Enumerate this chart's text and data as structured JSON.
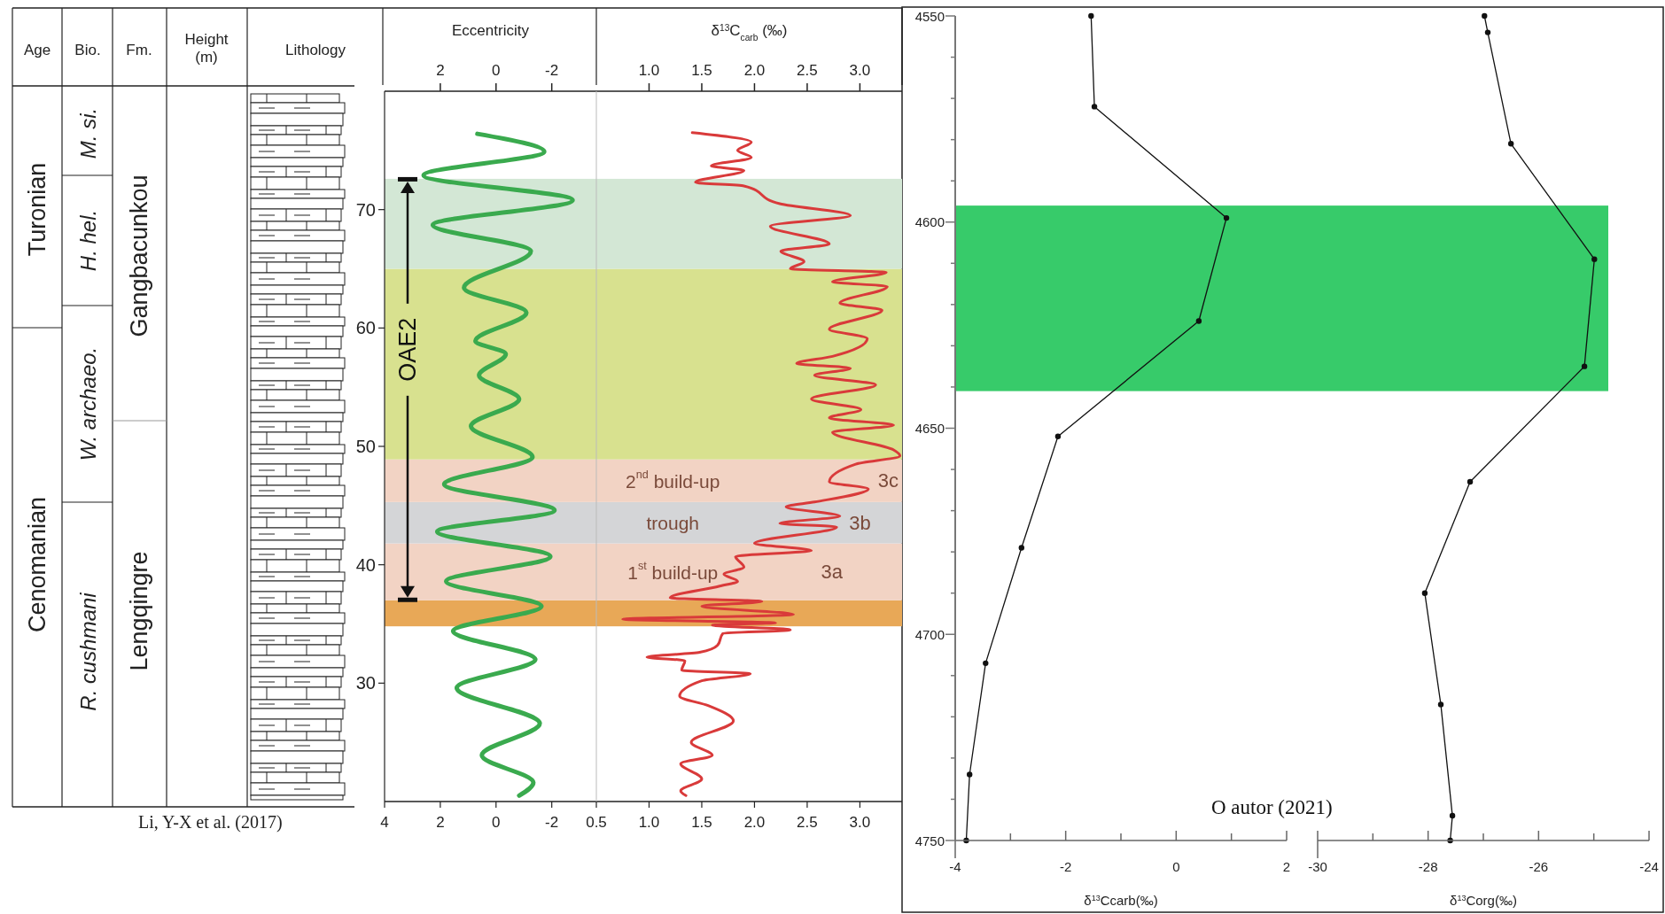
{
  "chart_data": [
    {
      "type": "other",
      "categories": [
        "Age",
        "Bio.",
        "Fm."
      ],
      "annotations": [
        "Turonian",
        "Cenomanian",
        "M. si.",
        "H. hel.",
        "W. archaeo.",
        "R. cushmani",
        "Gangbacunkou",
        "Lengqingre"
      ]
    },
    {
      "type": "line",
      "xlabel": "Eccentricity",
      "ylabel": "Height (m)",
      "xlim": [
        4,
        -3.6
      ],
      "xticks": [
        4,
        2,
        0,
        -2
      ],
      "x2lim": [
        4,
        -3.6
      ],
      "x2ticks": [
        2,
        0,
        -2
      ],
      "ylim": [
        20,
        80
      ],
      "yticks": [
        30,
        40,
        50,
        60,
        70
      ],
      "series": [
        {
          "color": "#3aaa4e",
          "x": [
            0.67,
            -1.73,
            2.6,
            -2.75,
            2.27,
            -1.25,
            1.15,
            -1.09,
            0.74,
            -0.35,
            0.61,
            -0.83,
            0.9,
            -1.31,
            1.86,
            -2.1,
            2.11,
            -1.95,
            1.79,
            -1.63,
            1.54,
            -1.41,
            1.41,
            -1.57,
            0.51,
            -1.34,
            -0.83
          ],
          "values": [
            76.4,
            74.9,
            72.9,
            70.8,
            68.7,
            66.5,
            63.4,
            61.3,
            58.9,
            57.8,
            56.0,
            54.0,
            51.7,
            49.1,
            46.8,
            44.6,
            42.8,
            40.7,
            38.6,
            36.5,
            34.4,
            32.0,
            29.6,
            26.6,
            23.9,
            21.6,
            20.5
          ]
        }
      ],
      "bands": [
        {
          "axis": "y",
          "from": 34.8,
          "to": 37.0,
          "color": "#e8a857"
        },
        {
          "axis": "y",
          "from": 37.0,
          "to": 41.8,
          "color": "#f2d3c4"
        },
        {
          "axis": "y",
          "from": 41.8,
          "to": 45.3,
          "color": "#d4d5d7"
        },
        {
          "axis": "y",
          "from": 45.3,
          "to": 48.9,
          "color": "#f2d3c4"
        },
        {
          "axis": "y",
          "from": 48.9,
          "to": 65.0,
          "color": "#d8e18f"
        },
        {
          "axis": "y",
          "from": 65.0,
          "to": 72.6,
          "color": "#d3e7d5"
        }
      ],
      "annotations": [
        "OAE2",
        "Lithology",
        "Li, Y-X et al. (2017)"
      ]
    },
    {
      "type": "line",
      "xlabel": "δ$^{13}$C$_{carb}$ (‰)",
      "xlim": [
        0.5,
        3.4
      ],
      "xticks": [
        {
          "value": 0.5,
          "label": "0.5"
        },
        {
          "value": 1,
          "label": "1.0"
        },
        {
          "value": 1.5,
          "label": "1.5"
        },
        {
          "value": 2,
          "label": "2.0"
        },
        {
          "value": 2.5,
          "label": "2.5"
        },
        {
          "value": 3,
          "label": "3.0"
        }
      ],
      "x2lim": [
        0.5,
        3.4
      ],
      "x2ticks": [
        {
          "value": 1,
          "label": "1.0"
        },
        {
          "value": 1.5,
          "label": "1.5"
        },
        {
          "value": 2,
          "label": "2.0"
        },
        {
          "value": 2.5,
          "label": "2.5"
        },
        {
          "value": 3,
          "label": "3.0"
        }
      ],
      "ylim": [
        20,
        80
      ],
      "tick_labels": "x",
      "series": [
        {
          "color": "#d93a3a",
          "x": [
            1.41,
            1.97,
            1.84,
            1.97,
            1.59,
            1.9,
            1.44,
            1.9,
            2.24,
            2.91,
            2.15,
            2.71,
            2.25,
            2.47,
            2.34,
            3.25,
            2.74,
            3.26,
            2.81,
            3.21,
            2.71,
            3.07,
            2.74,
            2.4,
            2.91,
            2.57,
            3.15,
            2.54,
            3.01,
            2.71,
            3.32,
            2.74,
            3.32,
            3.38,
            2.96,
            2.71,
            3.08,
            2.57,
            2.3,
            2.81,
            2.24,
            2.78,
            2.0,
            2.54,
            1.82,
            1.9,
            1.71,
            1.84,
            1.67,
            1.2,
            2.07,
            1.5,
            2.37,
            0.75,
            2.2,
            1.6,
            2.34,
            1.7,
            1.65,
            1.48,
            0.98,
            1.34,
            1.31,
            1.96,
            1.5,
            1.29,
            1.56,
            1.8,
            1.4,
            1.6,
            1.3,
            1.5,
            1.3,
            1.35
          ],
          "values": [
            76.5,
            75.7,
            75.0,
            74.4,
            73.7,
            73.3,
            72.3,
            72.0,
            70.5,
            69.5,
            68.6,
            67.1,
            66.5,
            65.6,
            65.0,
            64.7,
            63.9,
            63.5,
            62.1,
            61.5,
            59.9,
            59.1,
            57.6,
            57.0,
            56.6,
            56.0,
            55.2,
            54.0,
            53.1,
            52.4,
            51.8,
            51.2,
            49.7,
            49.2,
            48.5,
            47.0,
            46.4,
            45.3,
            44.9,
            44.1,
            43.5,
            43.2,
            41.8,
            41.2,
            40.7,
            39.8,
            39.2,
            38.6,
            38.2,
            37.2,
            36.9,
            36.5,
            35.8,
            35.4,
            35.1,
            34.9,
            34.5,
            34.2,
            33.2,
            32.6,
            32.2,
            31.9,
            31.1,
            30.8,
            30.2,
            28.9,
            28.1,
            26.8,
            25.0,
            23.9,
            23.2,
            21.9,
            20.9,
            20.5
          ]
        }
      ],
      "bands": [
        {
          "axis": "y",
          "from": 34.8,
          "to": 37.0,
          "color": "#e8a857"
        },
        {
          "axis": "y",
          "from": 37.0,
          "to": 41.8,
          "color": "#f2d3c4",
          "label": "1$^{st}$ build-up"
        },
        {
          "axis": "y",
          "from": 41.8,
          "to": 45.3,
          "color": "#d4d5d7",
          "label": "trough"
        },
        {
          "axis": "y",
          "from": 45.3,
          "to": 48.9,
          "color": "#f2d3c4",
          "label": "2$^{nd}$ build-up"
        },
        {
          "axis": "y",
          "from": 48.9,
          "to": 65.0,
          "color": "#d8e18f"
        },
        {
          "axis": "y",
          "from": 65.0,
          "to": 72.6,
          "color": "#d3e7d5"
        }
      ],
      "annotations": [
        "3a",
        "3b",
        "3c"
      ]
    },
    {
      "type": "line",
      "xlabel": "δ$^{13}$Ccarb(‰)",
      "xlim": [
        -4,
        2
      ],
      "xticks": [
        -4,
        {
          "value": -3,
          "label": null
        },
        -2,
        {
          "value": -1,
          "label": null
        },
        0,
        {
          "value": 1,
          "label": null
        },
        2
      ],
      "ylim": [
        4750,
        4550
      ],
      "yticks": [
        4550,
        {
          "value": 4560,
          "label": null
        },
        {
          "value": 4570,
          "label": null
        },
        {
          "value": 4580,
          "label": null
        },
        {
          "value": 4590,
          "label": null
        },
        4600,
        {
          "value": 4610,
          "label": null
        },
        {
          "value": 4620,
          "label": null
        },
        {
          "value": 4630,
          "label": null
        },
        {
          "value": 4640,
          "label": null
        },
        4650,
        {
          "value": 4660,
          "label": null
        },
        {
          "value": 4670,
          "label": null
        },
        {
          "value": 4680,
          "label": null
        },
        {
          "value": 4690,
          "label": null
        },
        4700,
        {
          "value": 4710,
          "label": null
        },
        {
          "value": 4720,
          "label": null
        },
        {
          "value": 4730,
          "label": null
        },
        {
          "value": 4740,
          "label": null
        },
        4750
      ],
      "marker": "circle",
      "series": [
        {
          "color": "#111111",
          "x": [
            -1.54,
            -1.48,
            0.91,
            0.41,
            -2.14,
            -2.8,
            -3.45,
            -3.74,
            -3.8
          ],
          "values": [
            4550,
            4572,
            4599,
            4624,
            4652,
            4679,
            4707,
            4734,
            4750
          ]
        }
      ],
      "bands": [
        {
          "axis": "y",
          "from": 4596,
          "to": 4641,
          "color": "#37cb6a"
        }
      ],
      "annotations": [
        "O autor (2021)"
      ]
    },
    {
      "type": "line",
      "xlabel": "δ$^{13}$Corg(‰)",
      "xlim": [
        -30,
        -24
      ],
      "xticks": [
        -30,
        {
          "value": -29,
          "label": null
        },
        -28,
        {
          "value": -27,
          "label": null
        },
        -26,
        {
          "value": -25,
          "label": null
        },
        -24
      ],
      "ylim": [
        4750,
        4550
      ],
      "tick_labels": "x",
      "marker": "circle",
      "series": [
        {
          "color": "#111111",
          "x": [
            -26.98,
            -26.92,
            -26.5,
            -24.99,
            -25.17,
            -27.24,
            -28.06,
            -27.77,
            -27.56,
            -27.6
          ],
          "values": [
            4550,
            4554,
            4581,
            4609,
            4635,
            4663,
            4690,
            4717,
            4744,
            4750
          ]
        }
      ],
      "bands": [
        {
          "axis": "y",
          "from": 4596,
          "to": 4641,
          "color": "#37cb6a"
        }
      ]
    }
  ]
}
